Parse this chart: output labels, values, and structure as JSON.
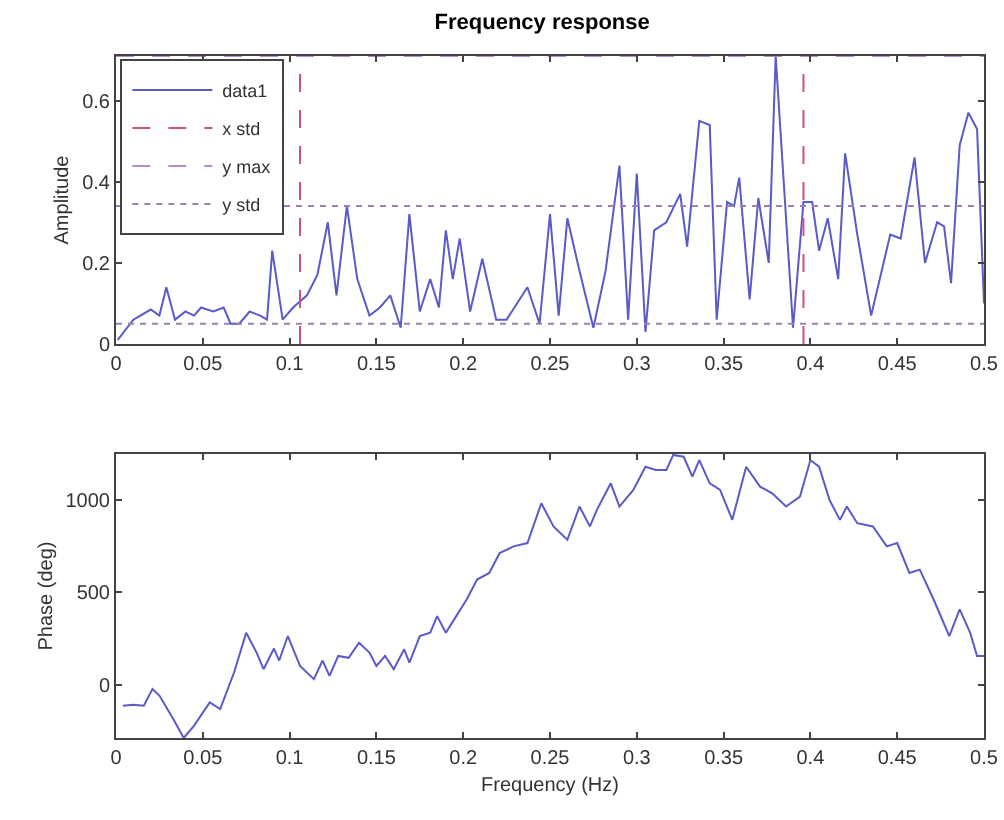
{
  "chart_data": [
    {
      "type": "line",
      "title": "Frequency response",
      "ylabel": "Amplitude",
      "legend": "top left",
      "grid": false,
      "marker": "none",
      "line_style": "solid",
      "xlim": [
        0,
        0.5
      ],
      "xticks": [
        0,
        0.05,
        0.1,
        0.15,
        0.2,
        0.25,
        0.3,
        0.35,
        0.4,
        0.45,
        0.5
      ],
      "ylim": [
        0,
        0.71
      ],
      "yticks": [
        0,
        0.2,
        0.4,
        0.6
      ],
      "series": [
        {
          "name": "data1",
          "color": "#5a5ac8",
          "x": [
            0.001,
            0.01,
            0.02,
            0.025,
            0.029,
            0.034,
            0.04,
            0.045,
            0.049,
            0.056,
            0.062,
            0.066,
            0.071,
            0.077,
            0.083,
            0.087,
            0.09,
            0.096,
            0.102,
            0.11,
            0.116,
            0.122,
            0.127,
            0.133,
            0.139,
            0.146,
            0.152,
            0.158,
            0.164,
            0.169,
            0.175,
            0.181,
            0.186,
            0.19,
            0.194,
            0.198,
            0.204,
            0.211,
            0.219,
            0.225,
            0.237,
            0.244,
            0.25,
            0.255,
            0.26,
            0.267,
            0.275,
            0.282,
            0.29,
            0.295,
            0.3,
            0.305,
            0.31,
            0.317,
            0.325,
            0.329,
            0.336,
            0.342,
            0.346,
            0.352,
            0.356,
            0.359,
            0.365,
            0.37,
            0.376,
            0.38,
            0.39,
            0.396,
            0.401,
            0.405,
            0.41,
            0.416,
            0.42,
            0.427,
            0.435,
            0.446,
            0.452,
            0.46,
            0.466,
            0.473,
            0.477,
            0.481,
            0.486,
            0.491,
            0.496,
            0.5
          ],
          "values": [
            0.01,
            0.06,
            0.085,
            0.07,
            0.14,
            0.06,
            0.08,
            0.07,
            0.09,
            0.08,
            0.09,
            0.05,
            0.05,
            0.08,
            0.07,
            0.06,
            0.23,
            0.06,
            0.09,
            0.12,
            0.17,
            0.3,
            0.12,
            0.34,
            0.16,
            0.07,
            0.09,
            0.12,
            0.04,
            0.32,
            0.08,
            0.16,
            0.09,
            0.28,
            0.16,
            0.26,
            0.08,
            0.21,
            0.06,
            0.06,
            0.14,
            0.05,
            0.32,
            0.07,
            0.31,
            0.18,
            0.04,
            0.18,
            0.44,
            0.06,
            0.42,
            0.03,
            0.28,
            0.3,
            0.37,
            0.24,
            0.55,
            0.54,
            0.06,
            0.35,
            0.34,
            0.41,
            0.11,
            0.36,
            0.2,
            0.71,
            0.04,
            0.35,
            0.35,
            0.23,
            0.31,
            0.16,
            0.47,
            0.27,
            0.07,
            0.27,
            0.26,
            0.46,
            0.2,
            0.3,
            0.29,
            0.15,
            0.49,
            0.57,
            0.53,
            0.1
          ]
        }
      ],
      "ref_lines": [
        {
          "axis": "x",
          "value": 0.106,
          "label": "x std",
          "color": "#d0508a",
          "line_style": "dashed"
        },
        {
          "axis": "x",
          "value": 0.396,
          "color": "#d0508a",
          "line_style": "dashed"
        },
        {
          "axis": "y",
          "value": 0.71,
          "label": "y max",
          "color": "#b48cc8",
          "line_style": "dashed"
        },
        {
          "axis": "y",
          "value": 0.05,
          "label": "y std",
          "color": "#a080b0",
          "line_style": "dotted"
        },
        {
          "axis": "y",
          "value": 0.34,
          "color": "#a080b0",
          "line_style": "dotted"
        }
      ]
    },
    {
      "type": "line",
      "xlabel": "Frequency (Hz)",
      "ylabel": "Phase (deg)",
      "legend": false,
      "grid": false,
      "marker": "none",
      "line_style": "solid",
      "xlim": [
        0,
        0.5
      ],
      "xticks": [
        0,
        0.05,
        0.1,
        0.15,
        0.2,
        0.25,
        0.3,
        0.35,
        0.4,
        0.45,
        0.5
      ],
      "ylim": [
        -290,
        1250
      ],
      "yticks": [
        0,
        500,
        1000
      ],
      "series": [
        {
          "color": "#5a5ac8",
          "x": [
            0.004,
            0.01,
            0.016,
            0.021,
            0.025,
            0.033,
            0.039,
            0.045,
            0.054,
            0.06,
            0.068,
            0.075,
            0.081,
            0.085,
            0.091,
            0.094,
            0.099,
            0.106,
            0.114,
            0.119,
            0.123,
            0.128,
            0.134,
            0.14,
            0.146,
            0.15,
            0.155,
            0.16,
            0.166,
            0.169,
            0.175,
            0.181,
            0.185,
            0.19,
            0.196,
            0.202,
            0.208,
            0.215,
            0.221,
            0.229,
            0.237,
            0.245,
            0.252,
            0.26,
            0.267,
            0.273,
            0.277,
            0.285,
            0.29,
            0.298,
            0.305,
            0.311,
            0.317,
            0.321,
            0.327,
            0.332,
            0.336,
            0.342,
            0.348,
            0.355,
            0.363,
            0.371,
            0.378,
            0.386,
            0.394,
            0.4,
            0.405,
            0.411,
            0.417,
            0.421,
            0.427,
            0.436,
            0.444,
            0.45,
            0.457,
            0.463,
            0.471,
            0.48,
            0.486,
            0.492,
            0.496,
            0.5
          ],
          "values": [
            -115,
            -110,
            -115,
            -25,
            -60,
            -187,
            -290,
            -223,
            -97,
            -133,
            65,
            281,
            173,
            83,
            195,
            130,
            263,
            101,
            29,
            130,
            47,
            155,
            145,
            227,
            173,
            101,
            155,
            83,
            191,
            119,
            263,
            281,
            371,
            281,
            371,
            461,
            569,
            605,
            713,
            749,
            767,
            983,
            857,
            785,
            965,
            857,
            947,
            1091,
            965,
            1055,
            1181,
            1163,
            1163,
            1245,
            1235,
            1127,
            1217,
            1091,
            1055,
            893,
            1181,
            1073,
            1037,
            965,
            1019,
            1217,
            1181,
            1001,
            893,
            965,
            875,
            857,
            749,
            767,
            605,
            623,
            461,
            263,
            407,
            281,
            155,
            155
          ]
        }
      ]
    }
  ]
}
